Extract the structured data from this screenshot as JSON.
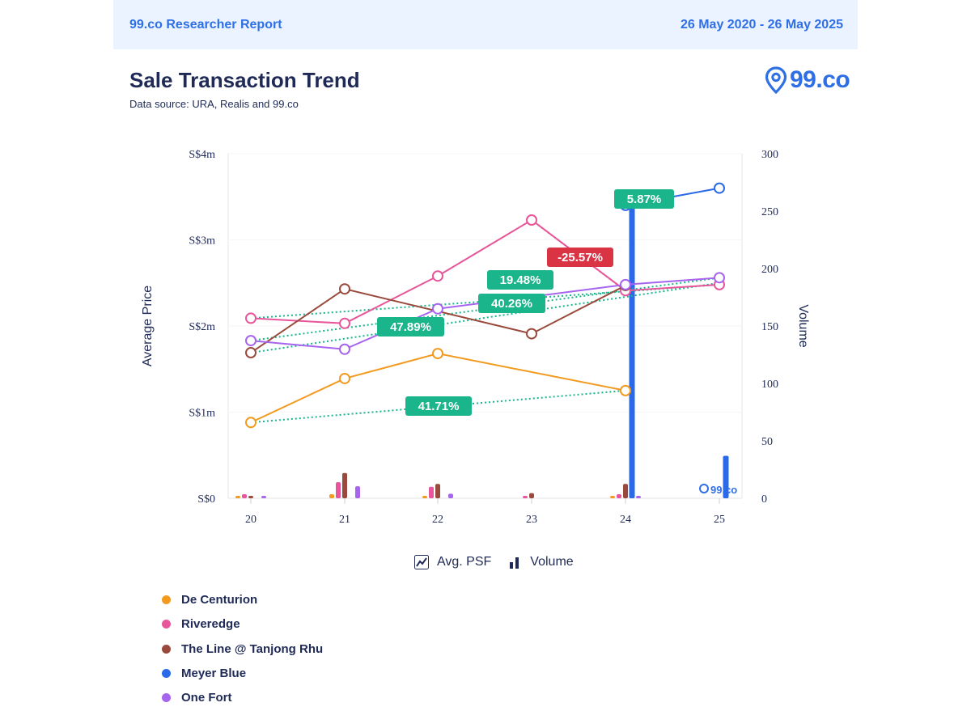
{
  "header": {
    "report_label": "99.co Researcher Report",
    "date_range": "26 May 2020 - 26 May 2025"
  },
  "title": "Sale Transaction Trend",
  "subtitle": "Data source: URA, Realis and 99.co",
  "logo": {
    "text": "99.co",
    "icon": "location-pin-icon",
    "color": "#2f6fe6"
  },
  "modes": [
    {
      "label": "Avg. PSF",
      "icon": "line-chart-icon"
    },
    {
      "label": "Volume",
      "icon": "bar-chart-icon"
    }
  ],
  "legend": [
    {
      "name": "De Centurion",
      "color": "#f29a1f"
    },
    {
      "name": "Riveredge",
      "color": "#e8559a"
    },
    {
      "name": "The Line @ Tanjong Rhu",
      "color": "#9a4a3c"
    },
    {
      "name": "Meyer Blue",
      "color": "#2a6ae8"
    },
    {
      "name": "One Fort",
      "color": "#a764ee"
    }
  ],
  "chart_data": {
    "type": "line",
    "x": [
      "20",
      "21",
      "22",
      "23",
      "24",
      "25"
    ],
    "y_left": {
      "label": "Average Price",
      "ticks": [
        "S$0",
        "S$1m",
        "S$2m",
        "S$3m",
        "S$4m"
      ],
      "range": [
        0,
        4
      ]
    },
    "y_right": {
      "label": "Volume",
      "ticks": [
        "0",
        "50",
        "100",
        "150",
        "200",
        "250",
        "300"
      ],
      "range": [
        0,
        300
      ]
    },
    "series": [
      {
        "name": "De Centurion",
        "color": "#f29a1f",
        "price": [
          0.88,
          1.39,
          1.68,
          null,
          1.25,
          null
        ],
        "volume": [
          0.6,
          3.5,
          1.2,
          0,
          1.5,
          0
        ]
      },
      {
        "name": "Riveredge",
        "color": "#e8559a",
        "price": [
          2.09,
          2.03,
          2.58,
          3.23,
          2.41,
          2.48
        ],
        "volume": [
          3.5,
          14,
          10,
          2,
          3.5,
          0
        ]
      },
      {
        "name": "The Line @ Tanjong Rhu",
        "color": "#9a4a3c",
        "price": [
          1.69,
          2.43,
          null,
          1.91,
          2.47,
          null
        ],
        "volume": [
          1.4,
          22,
          12.5,
          4.5,
          12.5,
          0
        ]
      },
      {
        "name": "Meyer Blue",
        "color": "#2a6ae8",
        "price": [
          null,
          null,
          null,
          null,
          3.4,
          3.6
        ],
        "volume": [
          0,
          0,
          0,
          0,
          256,
          37
        ]
      },
      {
        "name": "One Fort",
        "color": "#a764ee",
        "price": [
          1.83,
          1.73,
          2.2,
          null,
          2.48,
          2.56
        ],
        "volume": [
          0.8,
          10.5,
          4,
          0,
          1.7,
          0
        ]
      }
    ],
    "trendlines": [
      {
        "series": "De Centurion",
        "from": [
          0,
          0.88
        ],
        "to": [
          4,
          1.25
        ],
        "color": "#17b58a"
      },
      {
        "series": "Riveredge",
        "from": [
          0,
          2.09
        ],
        "to": [
          5,
          2.48
        ],
        "color": "#17b58a"
      },
      {
        "series": "The Line @ Tanjong Rhu",
        "from": [
          0,
          1.69
        ],
        "to": [
          5,
          2.5
        ],
        "color": "#17b58a"
      },
      {
        "series": "One Fort",
        "from": [
          0,
          1.83
        ],
        "to": [
          5,
          2.56
        ],
        "color": "#17b58a"
      },
      {
        "series": "Riveredge",
        "from": [
          3,
          3.23
        ],
        "to": [
          4,
          2.41
        ],
        "color": "#d93344"
      }
    ],
    "badges": [
      {
        "text": "5.87%",
        "color": "#1ab58a"
      },
      {
        "text": "-25.57%",
        "color": "#d93344"
      },
      {
        "text": "19.48%",
        "color": "#1ab58a"
      },
      {
        "text": "40.26%",
        "color": "#1ab58a"
      },
      {
        "text": "47.89%",
        "color": "#1ab58a"
      },
      {
        "text": "41.71%",
        "color": "#1ab58a"
      }
    ]
  }
}
